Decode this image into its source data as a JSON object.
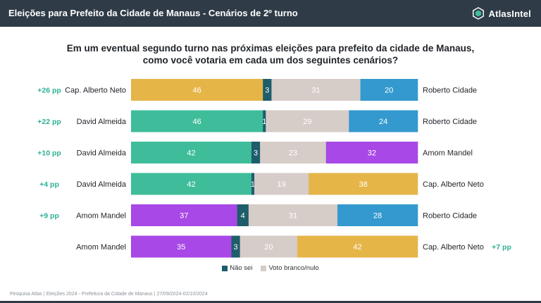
{
  "header": {
    "title": "Eleições para Prefeito da Cidade de Manaus - Cenários de 2º turno",
    "brand": "AtlasIntel"
  },
  "question": "Em um eventual segundo turno nas próximas eleições para prefeito da cidade de Manaus, como você votaria em cada um dos seguintes cenários?",
  "legend": [
    {
      "label": "Não sei",
      "color": "#1e5d6b"
    },
    {
      "label": "Voto branco/nulo",
      "color": "#d6ccc8"
    }
  ],
  "footer": "Pesquisa Atlas | Eleições 2024 - Prefeitura da Cidade de Manaus | 27/09/2024-02/10/2024",
  "colors": {
    "Cap. Alberto Neto": "#e6b548",
    "David Almeida": "#3fbd9b",
    "Amom Mandel": "#a848e6",
    "Roberto Cidade": "#3399cf",
    "nao_sei": "#1e5d6b",
    "branco": "#d6ccc8",
    "pp": "#2eaf94"
  },
  "chart_data": {
    "type": "bar",
    "stacked": true,
    "orientation": "horizontal",
    "scenarios": [
      {
        "left": "Cap. Alberto Neto",
        "right": "Roberto Cidade",
        "values": [
          46,
          3,
          31,
          20
        ],
        "lead": "+26 pp",
        "lead_side": "left"
      },
      {
        "left": "David Almeida",
        "right": "Roberto Cidade",
        "values": [
          46,
          1,
          29,
          24
        ],
        "lead": "+22 pp",
        "lead_side": "left"
      },
      {
        "left": "David Almeida",
        "right": "Amom Mandel",
        "values": [
          42,
          3,
          23,
          32
        ],
        "lead": "+10 pp",
        "lead_side": "left"
      },
      {
        "left": "David Almeida",
        "right": "Cap. Alberto Neto",
        "values": [
          42,
          1,
          19,
          38
        ],
        "lead": "+4 pp",
        "lead_side": "left"
      },
      {
        "left": "Amom Mandel",
        "right": "Roberto Cidade",
        "values": [
          37,
          4,
          31,
          28
        ],
        "lead": "+9 pp",
        "lead_side": "left"
      },
      {
        "left": "Amom Mandel",
        "right": "Cap. Alberto Neto",
        "values": [
          35,
          3,
          20,
          42
        ],
        "lead": "+7 pp",
        "lead_side": "right"
      }
    ],
    "segment_order": [
      "left candidate",
      "Não sei",
      "Voto branco/nulo",
      "right candidate"
    ]
  }
}
